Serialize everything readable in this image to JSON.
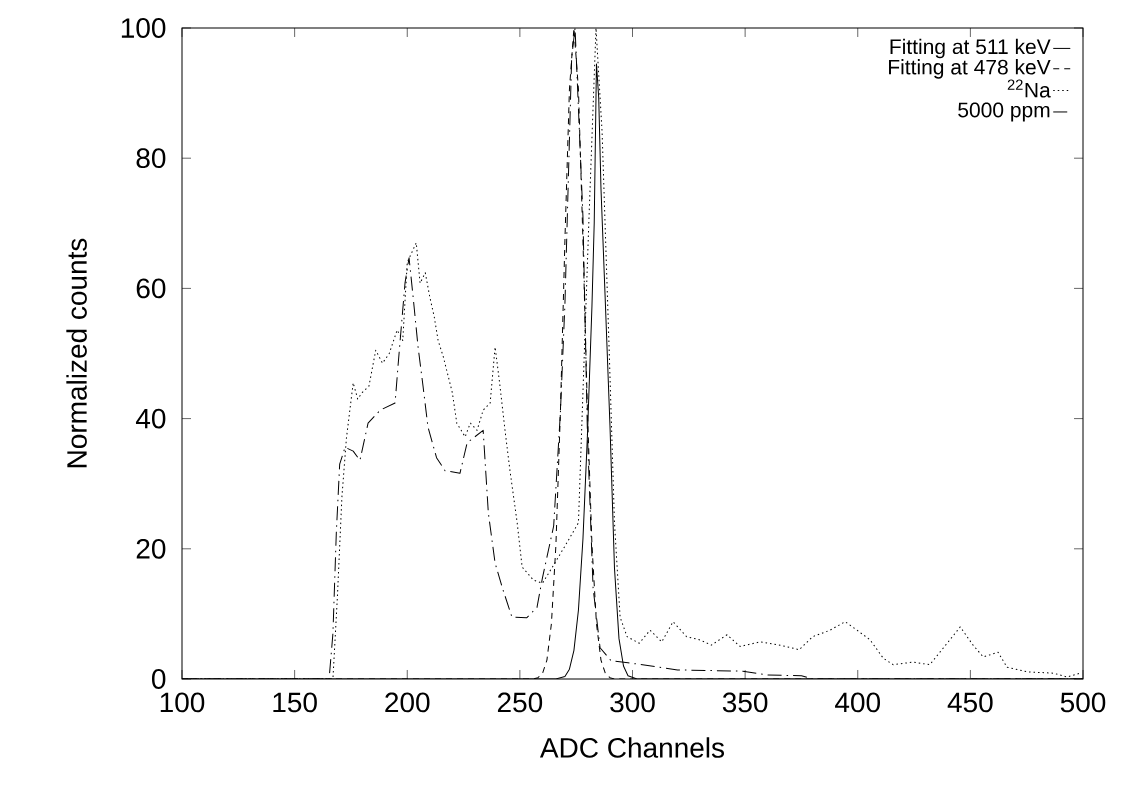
{
  "chart_data": {
    "type": "line",
    "xlabel": "ADC Channels",
    "ylabel": "Normalized counts",
    "xlim": [
      100,
      500
    ],
    "ylim": [
      0,
      100
    ],
    "xticks": [
      100,
      150,
      200,
      250,
      300,
      350,
      400,
      450,
      500
    ],
    "yticks": [
      0,
      20,
      40,
      60,
      80,
      100
    ],
    "grid": false,
    "legend": "top right",
    "marker": "none",
    "series": [
      {
        "name": "Fitting at 511 keV",
        "color": "#000000",
        "line_style": "solid",
        "x": [
          100,
          266,
          270,
          272,
          274,
          276,
          278,
          280,
          282,
          283,
          284,
          285,
          286,
          288,
          290,
          292,
          294,
          296,
          298,
          302,
          500
        ],
        "values": [
          0,
          0,
          0.4,
          1.5,
          4.4,
          10.6,
          21.5,
          37.5,
          57.3,
          70,
          94.5,
          89.3,
          75.4,
          57.3,
          38.9,
          17,
          6.2,
          2,
          0.5,
          0,
          0
        ]
      },
      {
        "name": "Fitting at 478 keV",
        "color": "#000000",
        "line_style": "dashed",
        "x": [
          100,
          256,
          258,
          260,
          262,
          264,
          266,
          268,
          270,
          272,
          274,
          276,
          278,
          280,
          282,
          284,
          286,
          288,
          290,
          292,
          294,
          500
        ],
        "values": [
          0,
          0,
          0.2,
          0.8,
          2.9,
          8.5,
          20.6,
          41.1,
          67.4,
          90.6,
          100,
          90.6,
          67.4,
          41.1,
          20.6,
          8.5,
          2.9,
          0.8,
          0.2,
          0,
          0,
          0
        ]
      },
      {
        "name": "$^{22}$Na",
        "color": "#000000",
        "line_style": "dotted",
        "x": [
          100,
          167,
          169,
          171,
          173,
          176,
          178,
          180,
          183,
          186,
          189,
          192,
          195.5,
          198,
          200,
          204,
          205.7,
          208,
          210,
          212,
          213.7,
          216,
          220,
          222,
          225.7,
          228,
          231,
          233.7,
          236.8,
          239,
          241,
          243.4,
          245.6,
          248.8,
          251,
          256,
          260,
          265,
          271,
          276,
          278,
          280.7,
          283.8,
          286.5,
          289.6,
          292,
          294.5,
          297.6,
          303,
          307.8,
          313,
          318,
          324,
          330,
          335,
          342,
          347.8,
          356.7,
          365.5,
          374,
          380,
          387.7,
          394.4,
          399.7,
          405.5,
          411.3,
          415.7,
          424.6,
          432,
          439.7,
          445.5,
          451.2,
          455.7,
          462.3,
          466.3,
          475.2,
          486.8,
          493,
          498.7
        ],
        "values": [
          0,
          0,
          12.7,
          28,
          37,
          45.5,
          43,
          44,
          45,
          50.5,
          48.5,
          50,
          53.6,
          52,
          64,
          67,
          60.8,
          62.4,
          58.7,
          55.6,
          52,
          49.5,
          44,
          39.3,
          37.2,
          39.3,
          38.2,
          41.3,
          42.4,
          51,
          45.5,
          38.2,
          32,
          24,
          17.2,
          15.2,
          14.7,
          17.5,
          21,
          24,
          44,
          71,
          100,
          84,
          51,
          24,
          9.5,
          6.5,
          5.5,
          7.5,
          5.7,
          8.8,
          6.5,
          6,
          5.2,
          6.8,
          5,
          5.7,
          5.2,
          4.5,
          6.5,
          7.5,
          8.8,
          7.5,
          6,
          3.2,
          2.2,
          2.6,
          2.2,
          5.5,
          8,
          5.2,
          3.4,
          4.1,
          1.8,
          1.1,
          0.9,
          0.3,
          0.9
        ]
      },
      {
        "name": "5000 ppm",
        "color": "#000000",
        "line_style": "dashdot",
        "x": [
          100,
          165.3,
          167,
          168.5,
          170,
          172.4,
          176,
          179,
          182.6,
          188,
          194.6,
          196,
          199,
          200.8,
          202.6,
          204.8,
          207,
          209.2,
          213,
          216.8,
          223.4,
          226.6,
          230,
          233.7,
          236,
          239,
          242.5,
          246.5,
          253,
          257.6,
          260,
          265,
          268,
          270,
          273,
          274.5,
          276,
          278,
          280,
          282.5,
          285.6,
          290.5,
          298,
          320,
          349,
          360,
          375,
          380,
          500
        ],
        "values": [
          0,
          0,
          7,
          22.4,
          33,
          35.6,
          35,
          33.6,
          39.3,
          41.3,
          42.4,
          48.5,
          60.8,
          64.7,
          58.7,
          51,
          45,
          38.7,
          34,
          32,
          31.6,
          36.3,
          37.2,
          38.2,
          25.5,
          17.8,
          13.7,
          9.5,
          9.4,
          11,
          15.5,
          23.5,
          41,
          57.6,
          95.5,
          100,
          87.6,
          71,
          37.5,
          14,
          4.8,
          2.8,
          2.5,
          1.4,
          1.2,
          0.6,
          0.5,
          0,
          0
        ]
      }
    ]
  }
}
